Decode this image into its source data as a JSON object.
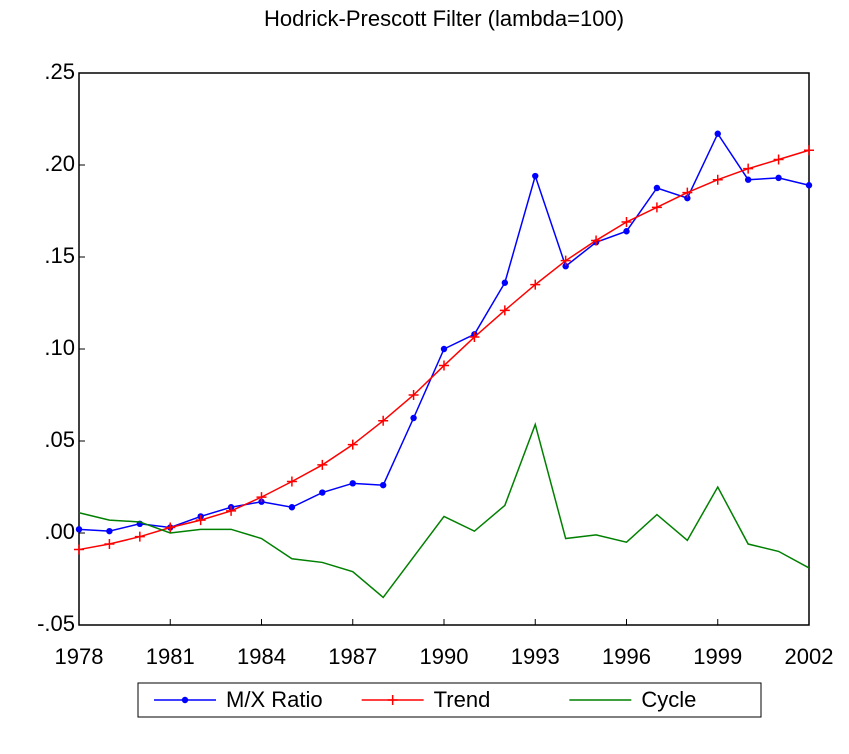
{
  "chart_data": {
    "type": "line",
    "title": "Hodrick-Prescott Filter (lambda=100)",
    "x": [
      1978,
      1979,
      1980,
      1981,
      1982,
      1983,
      1984,
      1985,
      1986,
      1987,
      1988,
      1989,
      1990,
      1991,
      1992,
      1993,
      1994,
      1995,
      1996,
      1997,
      1998,
      1999,
      2000,
      2001,
      2002
    ],
    "series": [
      {
        "name": "M/X Ratio",
        "color": "#0000ff",
        "marker": "dot",
        "values": [
          0.002,
          0.001,
          0.005,
          0.003,
          0.009,
          0.014,
          0.017,
          0.014,
          0.022,
          0.027,
          0.026,
          0.0625,
          0.1,
          0.108,
          0.136,
          0.194,
          0.145,
          0.158,
          0.164,
          0.1875,
          0.182,
          0.217,
          0.192,
          0.193,
          0.189
        ]
      },
      {
        "name": "Trend",
        "color": "#ff0000",
        "marker": "plus",
        "values": [
          -0.009,
          -0.006,
          -0.002,
          0.003,
          0.007,
          0.012,
          0.0195,
          0.028,
          0.037,
          0.048,
          0.061,
          0.075,
          0.091,
          0.1065,
          0.121,
          0.135,
          0.148,
          0.159,
          0.169,
          0.177,
          0.185,
          0.192,
          0.198,
          0.203,
          0.208
        ]
      },
      {
        "name": "Cycle",
        "color": "#008000",
        "marker": "none",
        "values": [
          0.011,
          0.007,
          0.006,
          0.0,
          0.002,
          0.002,
          -0.003,
          -0.014,
          -0.016,
          -0.021,
          -0.035,
          -0.013,
          0.009,
          0.001,
          0.015,
          0.059,
          -0.003,
          -0.001,
          -0.005,
          0.01,
          -0.004,
          0.025,
          -0.006,
          -0.01,
          -0.019
        ]
      }
    ],
    "xlim": [
      1978,
      2002
    ],
    "xticks": [
      1978,
      1981,
      1984,
      1987,
      1990,
      1993,
      1996,
      1999,
      2002
    ],
    "ylim": [
      -0.05,
      0.25
    ],
    "yticks": [
      {
        "value": -0.05,
        "label": "-.05"
      },
      {
        "value": 0,
        "label": ".00"
      },
      {
        "value": 0.05,
        "label": ".05"
      },
      {
        "value": 0.1,
        "label": ".10"
      },
      {
        "value": 0.15,
        "label": ".15"
      },
      {
        "value": 0.2,
        "label": ".20"
      },
      {
        "value": 0.25,
        "label": ".25"
      }
    ],
    "legend": "bottom"
  }
}
